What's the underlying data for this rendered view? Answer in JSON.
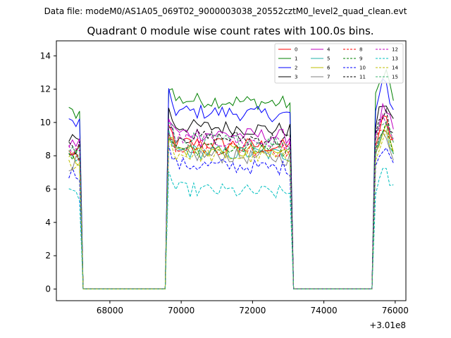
{
  "chart_data": {
    "type": "line",
    "suptitle": "Data file: modeM0/AS1A05_069T02_9000003038_20552cztM0_level2_quad_clean.evt",
    "title": "Quadrant 0 module wise count rates with 100.0s bins.",
    "xlabel": "",
    "ylabel": "",
    "x_offset_label": "+3.01e8",
    "xlim": [
      66500,
      76300
    ],
    "ylim": [
      -0.7,
      14.9
    ],
    "x_ticks": [
      68000,
      70000,
      72000,
      74000,
      76000
    ],
    "x_tick_labels": [
      "68000",
      "70000",
      "72000",
      "74000",
      "76000"
    ],
    "y_ticks": [
      0,
      2,
      4,
      6,
      8,
      10,
      12,
      14
    ],
    "y_tick_labels": [
      "0",
      "2",
      "4",
      "6",
      "8",
      "10",
      "12",
      "14"
    ],
    "grid": false,
    "legend_position": "top-right",
    "segments": [
      {
        "x_start": 66850,
        "x_end": 67150,
        "profile": "first"
      },
      {
        "x_start": 69650,
        "x_end": 73050,
        "profile": "flat"
      },
      {
        "x_start": 75450,
        "x_end": 75950,
        "profile": "last"
      }
    ],
    "gap_ranges": [
      [
        67350,
        69450
      ],
      [
        73250,
        75250
      ]
    ],
    "step_s": 100,
    "series": [
      {
        "name": "0",
        "color": "#ff0000",
        "style": "solid",
        "mean": 8.8
      },
      {
        "name": "1",
        "color": "#008000",
        "style": "solid",
        "mean": 11.4
      },
      {
        "name": "2",
        "color": "#0000ff",
        "style": "solid",
        "mean": 10.7
      },
      {
        "name": "3",
        "color": "#000000",
        "style": "solid",
        "mean": 9.8
      },
      {
        "name": "4",
        "color": "#bf00bf",
        "style": "solid",
        "mean": 9.4
      },
      {
        "name": "5",
        "color": "#20b2aa",
        "style": "solid",
        "mean": 8.3
      },
      {
        "name": "6",
        "color": "#bfbf00",
        "style": "solid",
        "mean": 8.4
      },
      {
        "name": "7",
        "color": "#808080",
        "style": "solid",
        "mean": 8.1
      },
      {
        "name": "8",
        "color": "#ff0000",
        "style": "dashed",
        "mean": 8.6
      },
      {
        "name": "9",
        "color": "#008000",
        "style": "dashed",
        "mean": 8.5
      },
      {
        "name": "10",
        "color": "#0000ff",
        "style": "dashed",
        "mean": 7.5
      },
      {
        "name": "11",
        "color": "#000000",
        "style": "dashed",
        "mean": 9.2
      },
      {
        "name": "12",
        "color": "#bf00bf",
        "style": "dashed",
        "mean": 9.0
      },
      {
        "name": "13",
        "color": "#00bfbf",
        "style": "dashed",
        "mean": 6.0
      },
      {
        "name": "14",
        "color": "#bfbf00",
        "style": "dashed",
        "mean": 8.1
      },
      {
        "name": "15",
        "color": "#3cb371",
        "style": "dashed",
        "mean": 9.0
      }
    ]
  }
}
